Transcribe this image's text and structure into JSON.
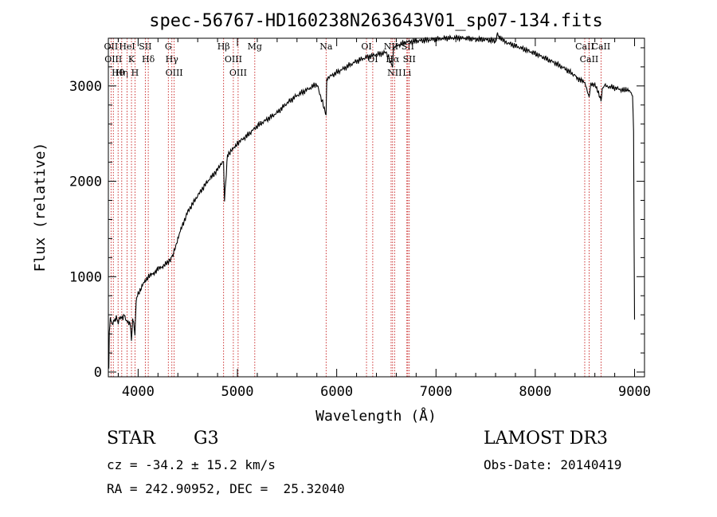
{
  "chart_data": {
    "type": "line",
    "title": "spec-56767-HD160238N263643V01_sp07-134.fits",
    "xlabel": "Wavelength (Å)",
    "ylabel": "Flux (relative)",
    "xlim": [
      3700,
      9100
    ],
    "ylim": [
      -50,
      3500
    ],
    "xticks": [
      4000,
      5000,
      6000,
      7000,
      8000,
      9000
    ],
    "yticks": [
      0,
      1000,
      2000,
      3000
    ],
    "grid": false,
    "colors": {
      "spectrum": "#000000",
      "lines": "#c00000",
      "axes": "#000000"
    },
    "series": [
      {
        "x": [
          3700,
          3705,
          3710,
          3720,
          3740,
          3760,
          3780,
          3800,
          3820,
          3840,
          3860,
          3880,
          3900,
          3920,
          3933,
          3945,
          3960,
          3968,
          3980,
          4000,
          4050,
          4100,
          4150,
          4200,
          4250,
          4300,
          4330,
          4340,
          4380,
          4400,
          4450,
          4500,
          4600,
          4700,
          4800,
          4860,
          4870,
          4900,
          4950,
          5000,
          5100,
          5200,
          5300,
          5400,
          5500,
          5600,
          5700,
          5800,
          5893,
          5900,
          6000,
          6100,
          6200,
          6300,
          6400,
          6500,
          6563,
          6570,
          6600,
          6700,
          6800,
          6900,
          7000,
          7100,
          7200,
          7300,
          7400,
          7500,
          7600,
          7620,
          7640,
          7700,
          7800,
          7900,
          8000,
          8100,
          8200,
          8300,
          8400,
          8450,
          8500,
          8542,
          8560,
          8600,
          8662,
          8680,
          8700,
          8800,
          8900,
          8950,
          8980,
          8990,
          8995,
          9000
        ],
        "y": [
          150,
          60,
          420,
          560,
          500,
          540,
          570,
          520,
          580,
          560,
          600,
          540,
          520,
          510,
          340,
          540,
          480,
          380,
          760,
          820,
          920,
          1000,
          1030,
          1080,
          1110,
          1150,
          1180,
          1200,
          1320,
          1400,
          1550,
          1680,
          1850,
          2000,
          2120,
          2220,
          1810,
          2280,
          2330,
          2400,
          2480,
          2580,
          2650,
          2720,
          2820,
          2900,
          2960,
          3020,
          2700,
          3080,
          3140,
          3200,
          3260,
          3300,
          3330,
          3350,
          3200,
          3380,
          3420,
          3460,
          3470,
          3480,
          3490,
          3500,
          3505,
          3500,
          3490,
          3485,
          3470,
          3550,
          3500,
          3460,
          3420,
          3380,
          3340,
          3290,
          3240,
          3180,
          3110,
          3060,
          3040,
          2880,
          3020,
          3010,
          2860,
          2990,
          3000,
          2980,
          2950,
          2960,
          2900,
          2500,
          1400,
          550
        ]
      }
    ],
    "lines": [
      {
        "wavelength": 3727,
        "label": "OII"
      },
      {
        "wavelength": 3750,
        "label": "OIII"
      },
      {
        "wavelength": 3798,
        "label": "Hθ"
      },
      {
        "wavelength": 3835,
        "label": "Hη"
      },
      {
        "wavelength": 3889,
        "label": "HeI"
      },
      {
        "wavelength": 3933,
        "label": "K"
      },
      {
        "wavelength": 3968,
        "label": "H"
      },
      {
        "wavelength": 4072,
        "label": "SII"
      },
      {
        "wavelength": 4102,
        "label": "Hδ"
      },
      {
        "wavelength": 4304,
        "label": "G"
      },
      {
        "wavelength": 4340,
        "label": "Hγ"
      },
      {
        "wavelength": 4363,
        "label": "OIII"
      },
      {
        "wavelength": 4861,
        "label": "Hβ"
      },
      {
        "wavelength": 4959,
        "label": "OIII"
      },
      {
        "wavelength": 5007,
        "label": "OIII"
      },
      {
        "wavelength": 5175,
        "label": "Mg"
      },
      {
        "wavelength": 5893,
        "label": "Na"
      },
      {
        "wavelength": 6300,
        "label": "OI"
      },
      {
        "wavelength": 6363,
        "label": "OI"
      },
      {
        "wavelength": 6548,
        "label": "NII"
      },
      {
        "wavelength": 6563,
        "label": "Hα"
      },
      {
        "wavelength": 6583,
        "label": "NII"
      },
      {
        "wavelength": 6707,
        "label": "Li"
      },
      {
        "wavelength": 6716,
        "label": "SII"
      },
      {
        "wavelength": 6731,
        "label": "SII"
      },
      {
        "wavelength": 8498,
        "label": "CaII"
      },
      {
        "wavelength": 8542,
        "label": "CaII"
      },
      {
        "wavelength": 8662,
        "label": "CaII"
      }
    ]
  },
  "info": {
    "object_class": "STAR",
    "subclass": "G3",
    "survey": "LAMOST DR3",
    "redshift": "cz = -34.2 ± 15.2 km/s",
    "obs_date": "Obs-Date: 20140419",
    "coords": "RA = 242.90952, DEC =  25.32040"
  }
}
